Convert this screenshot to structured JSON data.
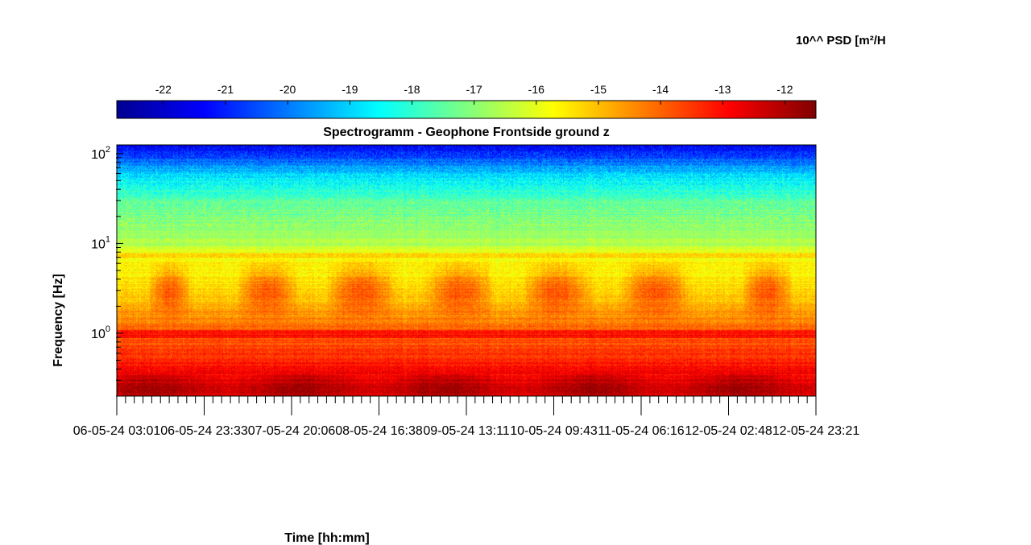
{
  "chart_data": {
    "type": "heatmap",
    "title": "Spectrogramm - Geophone Frontside ground z",
    "xlabel": "Time [hh:mm]",
    "ylabel": "Frequency [Hz]",
    "colorbar_label": "10^^ PSD [m²/H",
    "colormap": "jet",
    "colorbar_ticks": [
      -22,
      -21,
      -20,
      -19,
      -18,
      -17,
      -16,
      -15,
      -14,
      -13,
      -12
    ],
    "colorbar_range": [
      -22.75,
      -11.5
    ],
    "y_scale": "log",
    "y_range_hz": [
      0.2,
      125
    ],
    "y_ticks": [
      {
        "value": 1,
        "base": "10",
        "exp": "0"
      },
      {
        "value": 10,
        "base": "10",
        "exp": "1"
      },
      {
        "value": 100,
        "base": "10",
        "exp": "2"
      }
    ],
    "x_tick_labels": [
      "06-05-24  03:01",
      "06-05-24  23:33",
      "07-05-24  20:06",
      "08-05-24  16:38",
      "09-05-24  13:11",
      "10-05-24  09:43",
      "11-05-24  06:16",
      "12-05-24  02:48",
      "12-05-24  23:21"
    ],
    "approx_log10_psd_profile": [
      {
        "freq_hz": 0.25,
        "log_psd": -12.2
      },
      {
        "freq_hz": 0.4,
        "log_psd": -12.9
      },
      {
        "freq_hz": 0.6,
        "log_psd": -13.5
      },
      {
        "freq_hz": 1.0,
        "log_psd": -14.0
      },
      {
        "freq_hz": 3.0,
        "log_psd": -15.3
      },
      {
        "freq_hz": 7.5,
        "log_psd": -15.8
      },
      {
        "freq_hz": 10,
        "log_psd": -16.6
      },
      {
        "freq_hz": 30,
        "log_psd": -17.5
      },
      {
        "freq_hz": 60,
        "log_psd": -19.0
      },
      {
        "freq_hz": 120,
        "log_psd": -21.5
      }
    ],
    "daytime_activity_windows": [
      [
        0.05,
        0.1
      ],
      [
        0.18,
        0.25
      ],
      [
        0.31,
        0.39
      ],
      [
        0.45,
        0.53
      ],
      [
        0.59,
        0.67
      ],
      [
        0.73,
        0.81
      ],
      [
        0.9,
        0.96
      ]
    ],
    "grid": false,
    "legend": "colorbar-top"
  }
}
